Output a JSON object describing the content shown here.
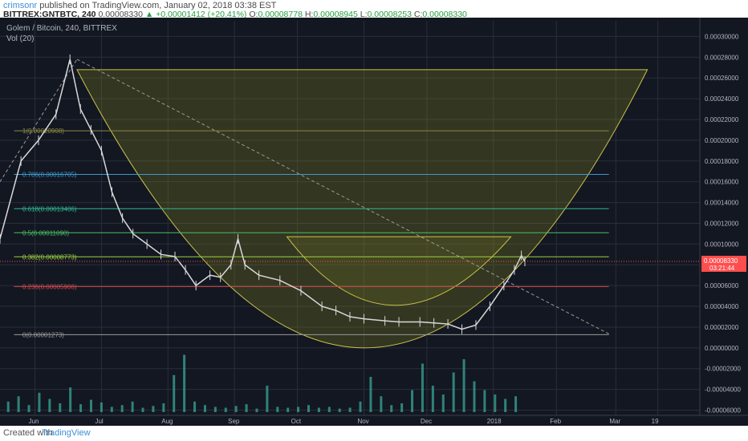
{
  "header": {
    "author": "crimsonr",
    "published_text": "published on TradingView.com, January 02, 2018 03:38 EST",
    "symbol": "BITTREX:GNTBTC, 240",
    "last": "0.00008330",
    "change": "▲ +0.00001412 (+20.41%)",
    "o_label": "O:",
    "o_value": "0.00008778",
    "h_label": "H:",
    "h_value": "0.00008945",
    "l_label": "L:",
    "l_value": "0.00008253",
    "c_label": "C:",
    "c_value": "0.00008330"
  },
  "legend": {
    "title": "Golem / Bitcoin, 240, BITTREX",
    "volume": "Vol (20)"
  },
  "footer": {
    "created_with": "Created with",
    "brand": "TradingView"
  },
  "colors": {
    "background": "#131722",
    "grid": "#2a2e39",
    "candle": "#d8d8d8",
    "cup_fill": "#8a8a20",
    "cup_line": "#c8c24a",
    "trend_line": "#9a9a9a",
    "price_tag": "#ff4d4d",
    "volume": "#3ab0a0"
  },
  "chart_data": {
    "type": "line",
    "title": "Golem / Bitcoin, 240, BITTREX",
    "x_ticks": [
      "Jun",
      "Jul",
      "Aug",
      "Sep",
      "Oct",
      "Nov",
      "Dec",
      "2018",
      "Feb",
      "Mar",
      "19"
    ],
    "y_ticks": [
      "0.00030000",
      "0.00028000",
      "0.00026000",
      "0.00024000",
      "0.00022000",
      "0.00020000",
      "0.00018000",
      "0.00016000",
      "0.00014000",
      "0.00012000",
      "0.00010000",
      "0.00008000",
      "0.00006000",
      "0.00004000",
      "0.00002000",
      "0.00000000",
      "-0.00002000",
      "-0.00004000",
      "-0.00006000"
    ],
    "ylim": [
      -6.5e-05,
      0.000315
    ],
    "fib_levels": [
      {
        "label": "0(0.00001273)",
        "value": 1.273e-05,
        "color": "#9a9a9a"
      },
      {
        "label": "0.236(0.00005906)",
        "value": 5.906e-05,
        "color": "#d04a4a"
      },
      {
        "label": "0.382(0.00008773)",
        "value": 8.773e-05,
        "color": "#9ad040"
      },
      {
        "label": "0.5(0.00011090)",
        "value": 0.0001109,
        "color": "#4ac060"
      },
      {
        "label": "0.618(0.00013406)",
        "value": 0.00013406,
        "color": "#30b890"
      },
      {
        "label": "0.786(0.00016705)",
        "value": 0.00016705,
        "color": "#3a9ad0"
      },
      {
        "label": "1(0.00020908)",
        "value": 0.00020908,
        "color": "#8a8a40"
      }
    ],
    "current_price": "0.00008330",
    "countdown": "03:21:44",
    "series": [
      {
        "points": [
          [
            0.0,
            0.000105
          ],
          [
            0.03,
            0.00018
          ],
          [
            0.055,
            0.0002
          ],
          [
            0.08,
            0.000225
          ],
          [
            0.1,
            0.000278
          ],
          [
            0.115,
            0.00023
          ],
          [
            0.13,
            0.00021
          ],
          [
            0.145,
            0.00019
          ],
          [
            0.16,
            0.00015
          ],
          [
            0.175,
            0.000125
          ],
          [
            0.19,
            0.00011
          ],
          [
            0.21,
            0.0001
          ],
          [
            0.23,
            9e-05
          ],
          [
            0.25,
            8.8e-05
          ],
          [
            0.265,
            7.5e-05
          ],
          [
            0.28,
            6e-05
          ],
          [
            0.3,
            7e-05
          ],
          [
            0.315,
            6.8e-05
          ],
          [
            0.33,
            8e-05
          ],
          [
            0.34,
            0.000105
          ],
          [
            0.35,
            8e-05
          ],
          [
            0.37,
            7e-05
          ],
          [
            0.4,
            6.5e-05
          ],
          [
            0.43,
            5.5e-05
          ],
          [
            0.46,
            4e-05
          ],
          [
            0.48,
            3.6e-05
          ],
          [
            0.5,
            3e-05
          ],
          [
            0.52,
            2.8e-05
          ],
          [
            0.55,
            2.6e-05
          ],
          [
            0.57,
            2.5e-05
          ],
          [
            0.6,
            2.5e-05
          ],
          [
            0.62,
            2.4e-05
          ],
          [
            0.64,
            2.3e-05
          ],
          [
            0.66,
            1.8e-05
          ],
          [
            0.68,
            2.2e-05
          ],
          [
            0.7,
            4e-05
          ],
          [
            0.72,
            6e-05
          ],
          [
            0.735,
            7.5e-05
          ],
          [
            0.745,
            8.9e-05
          ],
          [
            0.75,
            8.33e-05
          ]
        ]
      },
      {
        "name": "Vol (20)",
        "values": [
          0.12,
          0.18,
          0.08,
          0.22,
          0.15,
          0.1,
          0.28,
          0.09,
          0.14,
          0.11,
          0.06,
          0.08,
          0.12,
          0.05,
          0.07,
          0.1,
          0.42,
          0.65,
          0.12,
          0.08,
          0.06,
          0.05,
          0.07,
          0.09,
          0.04,
          0.3,
          0.06,
          0.05,
          0.06,
          0.08,
          0.05,
          0.06,
          0.04,
          0.05,
          0.12,
          0.4,
          0.18,
          0.08,
          0.1,
          0.25,
          0.55,
          0.3,
          0.2,
          0.45,
          0.6,
          0.35,
          0.25,
          0.2,
          0.15,
          0.18
        ]
      }
    ]
  }
}
